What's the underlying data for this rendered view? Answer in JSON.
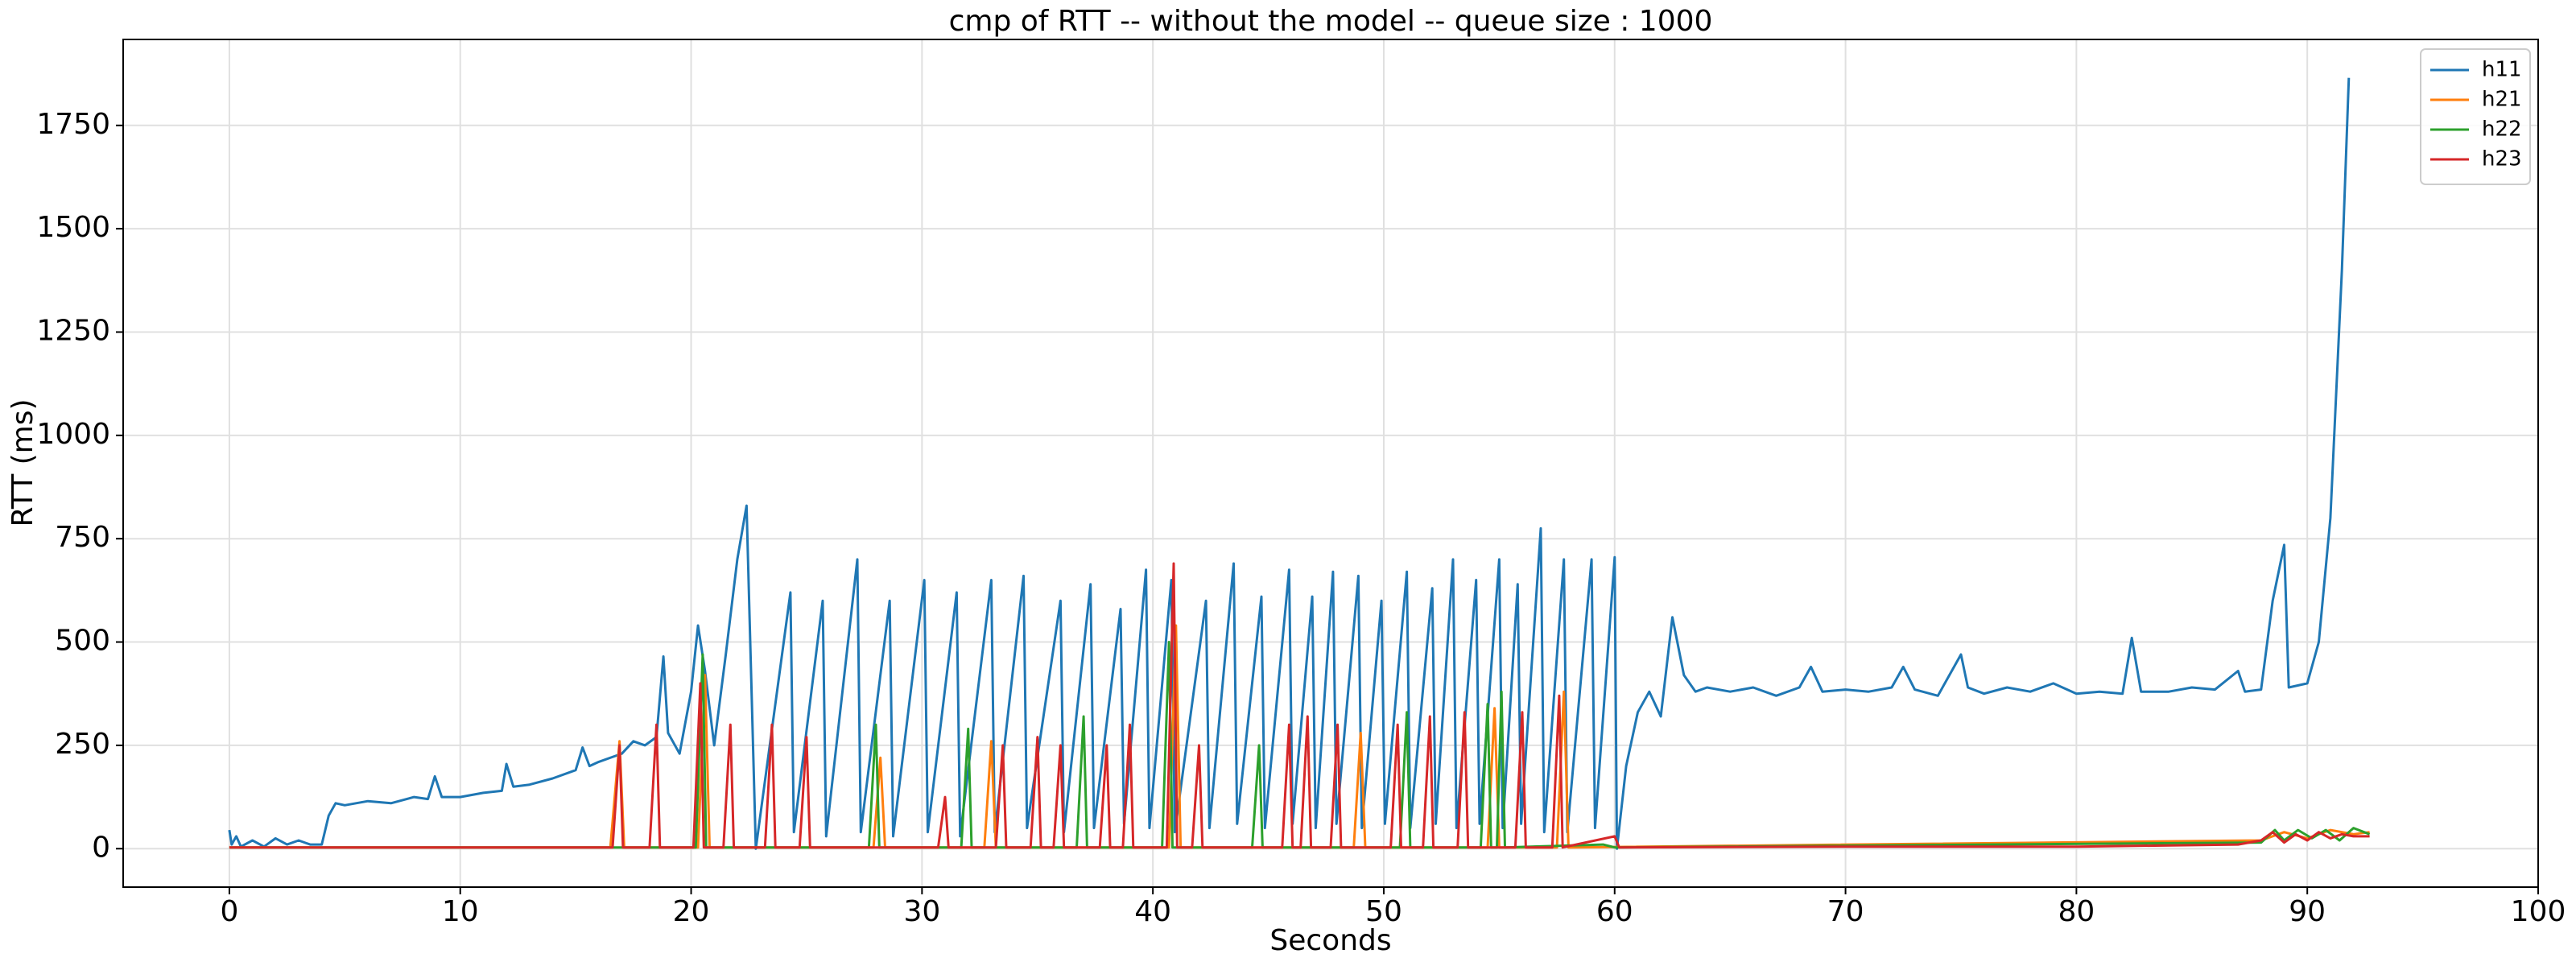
{
  "chart_data": {
    "type": "line",
    "title": "cmp of RTT -- without the model -- queue size : 1000",
    "x_label": "Seconds",
    "y_label": "RTT (ms)",
    "xlim": [
      -4.6,
      100
    ],
    "ylim": [
      -93,
      1958
    ],
    "xticks": [
      0,
      10,
      20,
      30,
      40,
      50,
      60,
      70,
      80,
      90,
      100
    ],
    "yticks": [
      0,
      250,
      500,
      750,
      1000,
      1250,
      1500,
      1750
    ],
    "grid": true,
    "legend": "upper right",
    "series": [
      {
        "name": "h11",
        "color": "#1f77b4",
        "x": [
          0,
          0.1,
          0.3,
          0.5,
          1,
          1.5,
          2,
          2.5,
          3,
          3.5,
          4,
          4.3,
          4.6,
          5,
          6,
          7,
          8,
          8.6,
          8.9,
          9.2,
          10,
          11,
          11.8,
          12,
          12.3,
          13,
          14,
          15,
          15.3,
          15.6,
          16,
          17,
          17.5,
          18,
          18.5,
          18.8,
          19,
          19.5,
          20,
          20.3,
          20.6,
          21,
          21.5,
          22,
          22.4,
          22.8,
          24.3,
          24.45,
          25.7,
          25.85,
          27.2,
          27.35,
          28.6,
          28.75,
          30.1,
          30.25,
          31.5,
          31.65,
          33,
          33.15,
          34.4,
          34.55,
          36,
          36.15,
          37.3,
          37.45,
          38.6,
          38.75,
          39.7,
          39.85,
          40.8,
          40.95,
          42.3,
          42.45,
          43.5,
          43.65,
          44.7,
          44.85,
          45.9,
          46.05,
          46.9,
          47.05,
          47.8,
          47.95,
          48.9,
          49.05,
          49.9,
          50.05,
          51,
          51.15,
          52.1,
          52.25,
          53,
          53.15,
          54,
          54.15,
          55,
          55.15,
          55.8,
          55.95,
          56.8,
          56.95,
          57.8,
          57.95,
          59,
          59.15,
          60,
          60.1,
          60.5,
          61,
          61.5,
          62,
          62.5,
          63,
          63.5,
          64,
          65,
          66,
          67,
          68,
          68.5,
          69,
          70,
          71,
          72,
          72.5,
          73,
          74,
          75,
          75.3,
          76,
          77,
          78,
          79,
          80,
          81,
          82,
          82.4,
          82.8,
          84,
          85,
          86,
          87,
          87.3,
          88,
          88.5,
          89,
          89.2,
          90,
          90.5,
          91,
          91.5,
          91.8
        ],
        "values": [
          45,
          10,
          30,
          5,
          20,
          5,
          25,
          10,
          20,
          10,
          10,
          80,
          110,
          105,
          115,
          110,
          125,
          120,
          175,
          125,
          125,
          135,
          140,
          205,
          150,
          155,
          170,
          190,
          245,
          200,
          210,
          230,
          260,
          250,
          270,
          465,
          280,
          230,
          380,
          540,
          430,
          250,
          470,
          700,
          830,
          0,
          620,
          40,
          600,
          30,
          700,
          40,
          600,
          30,
          650,
          40,
          620,
          30,
          650,
          40,
          660,
          50,
          600,
          40,
          640,
          50,
          580,
          60,
          675,
          50,
          650,
          40,
          600,
          50,
          690,
          60,
          610,
          50,
          675,
          60,
          610,
          50,
          670,
          60,
          660,
          50,
          600,
          60,
          670,
          50,
          630,
          60,
          700,
          50,
          650,
          60,
          700,
          50,
          640,
          60,
          775,
          40,
          700,
          40,
          700,
          50,
          705,
          0,
          200,
          330,
          380,
          320,
          560,
          420,
          380,
          390,
          380,
          390,
          370,
          390,
          440,
          380,
          385,
          380,
          390,
          440,
          385,
          370,
          470,
          390,
          375,
          390,
          380,
          400,
          375,
          380,
          375,
          510,
          380,
          380,
          390,
          385,
          430,
          380,
          385,
          600,
          735,
          390,
          400,
          500,
          800,
          1400,
          1865
        ]
      },
      {
        "name": "h21",
        "color": "#ff7f0e",
        "x": [
          0,
          16.5,
          16.9,
          17.1,
          20.3,
          20.6,
          20.8,
          27.9,
          28.2,
          28.4,
          32.7,
          33,
          33.2,
          40.7,
          41,
          41.2,
          48.7,
          49,
          49.2,
          54.5,
          54.8,
          55,
          57.5,
          57.8,
          58,
          88,
          89,
          90,
          91,
          92,
          92.7
        ],
        "values": [
          3,
          3,
          260,
          3,
          3,
          420,
          3,
          3,
          220,
          3,
          3,
          260,
          3,
          3,
          540,
          3,
          3,
          280,
          3,
          3,
          340,
          3,
          3,
          380,
          3,
          20,
          40,
          25,
          45,
          35,
          40
        ]
      },
      {
        "name": "h22",
        "color": "#2ca02c",
        "x": [
          0,
          20.2,
          20.5,
          20.65,
          27.7,
          28,
          28.15,
          31.7,
          32,
          32.15,
          36.7,
          37,
          37.15,
          40.4,
          40.7,
          40.85,
          44.3,
          44.6,
          44.75,
          50.7,
          51,
          51.15,
          54.2,
          54.5,
          54.65,
          54.9,
          55.1,
          55.25,
          59.5,
          60,
          88,
          88.6,
          89,
          89.6,
          90.2,
          90.8,
          91.4,
          92,
          92.7
        ],
        "values": [
          3,
          3,
          470,
          3,
          3,
          300,
          3,
          3,
          290,
          3,
          3,
          320,
          3,
          3,
          500,
          3,
          3,
          250,
          3,
          3,
          330,
          3,
          3,
          350,
          3,
          3,
          380,
          3,
          10,
          3,
          15,
          45,
          20,
          45,
          25,
          45,
          20,
          50,
          35
        ]
      },
      {
        "name": "h23",
        "color": "#d62728",
        "x": [
          0,
          16.6,
          16.9,
          17.05,
          18.2,
          18.5,
          18.65,
          20.1,
          20.4,
          20.55,
          21.4,
          21.7,
          21.85,
          23.2,
          23.5,
          23.65,
          24.7,
          25,
          25.15,
          30.7,
          31,
          31.15,
          33.2,
          33.5,
          33.65,
          34.7,
          35,
          35.15,
          35.7,
          36,
          36.15,
          37.7,
          38,
          38.15,
          38.7,
          39,
          39.15,
          40.6,
          40.9,
          41.05,
          41.7,
          42,
          42.15,
          45.6,
          45.9,
          46.05,
          46.4,
          46.7,
          46.85,
          47.7,
          48,
          48.15,
          50.3,
          50.6,
          50.75,
          51.7,
          52,
          52.15,
          53.2,
          53.5,
          53.65,
          55.7,
          56,
          56.15,
          57.3,
          57.6,
          57.75,
          60,
          60.2,
          70,
          80,
          87,
          88,
          88.5,
          89,
          89.5,
          90,
          90.5,
          91,
          91.5,
          92,
          92.7
        ],
        "values": [
          3,
          3,
          250,
          3,
          3,
          300,
          3,
          3,
          400,
          3,
          3,
          300,
          3,
          3,
          300,
          3,
          3,
          270,
          3,
          3,
          125,
          3,
          3,
          250,
          3,
          3,
          270,
          3,
          3,
          250,
          3,
          3,
          250,
          3,
          3,
          300,
          3,
          3,
          690,
          3,
          3,
          250,
          3,
          3,
          300,
          3,
          3,
          320,
          3,
          3,
          300,
          3,
          3,
          300,
          3,
          3,
          320,
          3,
          3,
          330,
          3,
          3,
          330,
          3,
          3,
          370,
          3,
          30,
          3,
          5,
          5,
          10,
          20,
          40,
          15,
          35,
          20,
          40,
          25,
          35,
          30,
          30
        ]
      }
    ]
  }
}
